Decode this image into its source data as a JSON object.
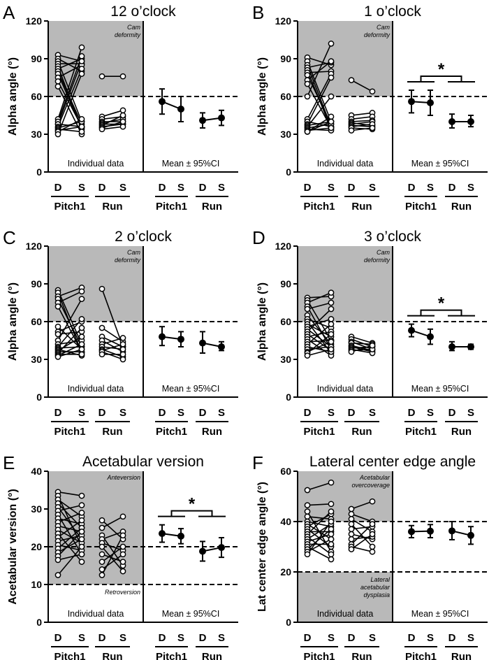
{
  "figure": {
    "individual_label": "Individual data",
    "mean_label": "Mean ± 95%CI",
    "side_labels": [
      "D",
      "S"
    ],
    "group_labels": [
      "Pitch1",
      "Run"
    ],
    "significance_marker": "*"
  },
  "chart_data": [
    {
      "panel": "A",
      "title": "12 o’clock",
      "type": "line",
      "ylabel": "Alpha angle (°)",
      "ylim": [
        0,
        120
      ],
      "yticks": [
        "0",
        "30",
        "60",
        "90",
        "120"
      ],
      "shade": [
        60,
        120
      ],
      "dashed": [
        60
      ],
      "annotations": [
        {
          "text": [
            "Cam",
            "deformity"
          ],
          "pos": "top-right"
        }
      ],
      "significant": false,
      "individual": {
        "pitch1": [
          [
            93,
            88
          ],
          [
            90,
            80
          ],
          [
            88,
            40
          ],
          [
            86,
            86
          ],
          [
            84,
            34
          ],
          [
            82,
            90
          ],
          [
            80,
            38
          ],
          [
            78,
            35
          ],
          [
            75,
            85
          ],
          [
            72,
            36
          ],
          [
            68,
            30
          ],
          [
            42,
            99
          ],
          [
            40,
            92
          ],
          [
            38,
            36
          ],
          [
            38,
            88
          ],
          [
            36,
            82
          ],
          [
            35,
            40
          ],
          [
            34,
            32
          ],
          [
            33,
            36
          ],
          [
            32,
            42
          ],
          [
            30,
            78
          ]
        ],
        "run": [
          [
            76,
            76
          ],
          [
            44,
            49
          ],
          [
            42,
            44
          ],
          [
            40,
            40
          ],
          [
            39,
            42
          ],
          [
            38,
            38
          ],
          [
            37,
            45
          ],
          [
            36,
            38
          ],
          [
            35,
            40
          ],
          [
            34,
            36
          ]
        ]
      },
      "mean": {
        "categories": [
          "Pitch1 D",
          "Pitch1 S",
          "Run D",
          "Run S"
        ],
        "values": [
          56,
          50,
          41,
          43
        ],
        "ci": [
          [
            46,
            66
          ],
          [
            40,
            60
          ],
          [
            35,
            47
          ],
          [
            37,
            49
          ]
        ]
      }
    },
    {
      "panel": "B",
      "title": "1 o’clock",
      "type": "line",
      "ylabel": "Alpha angle (°)",
      "ylim": [
        0,
        120
      ],
      "yticks": [
        "0",
        "30",
        "60",
        "90",
        "120"
      ],
      "shade": [
        60,
        120
      ],
      "dashed": [
        60
      ],
      "annotations": [
        {
          "text": [
            "Cam",
            "deformity"
          ],
          "pos": "top-right"
        }
      ],
      "significant": true,
      "individual": {
        "pitch1": [
          [
            91,
            85
          ],
          [
            88,
            40
          ],
          [
            85,
            36
          ],
          [
            83,
            87
          ],
          [
            81,
            34
          ],
          [
            79,
            80
          ],
          [
            77,
            38
          ],
          [
            73,
            88
          ],
          [
            70,
            35
          ],
          [
            60,
            102
          ],
          [
            42,
            78
          ],
          [
            40,
            36
          ],
          [
            38,
            75
          ],
          [
            37,
            40
          ],
          [
            36,
            60
          ],
          [
            35,
            38
          ],
          [
            34,
            33
          ],
          [
            33,
            35
          ],
          [
            32,
            44
          ],
          [
            32,
            40
          ]
        ],
        "run": [
          [
            73,
            64
          ],
          [
            45,
            47
          ],
          [
            42,
            44
          ],
          [
            40,
            41
          ],
          [
            39,
            37
          ],
          [
            38,
            40
          ],
          [
            37,
            36
          ],
          [
            36,
            38
          ],
          [
            35,
            34
          ],
          [
            33,
            35
          ]
        ]
      },
      "mean": {
        "categories": [
          "Pitch1 D",
          "Pitch1 S",
          "Run D",
          "Run S"
        ],
        "values": [
          56,
          55,
          40,
          40
        ],
        "ci": [
          [
            47,
            65
          ],
          [
            45,
            65
          ],
          [
            35,
            46
          ],
          [
            36,
            45
          ]
        ]
      }
    },
    {
      "panel": "C",
      "title": "2 o’clock",
      "type": "line",
      "ylabel": "Alpha angle (°)",
      "ylim": [
        0,
        120
      ],
      "yticks": [
        "0",
        "30",
        "60",
        "90",
        "120"
      ],
      "shade": [
        60,
        120
      ],
      "dashed": [
        60
      ],
      "annotations": [
        {
          "text": [
            "Cam",
            "deformity"
          ],
          "pos": "top-right"
        }
      ],
      "significant": false,
      "individual": {
        "pitch1": [
          [
            85,
            42
          ],
          [
            83,
            35
          ],
          [
            80,
            87
          ],
          [
            78,
            40
          ],
          [
            75,
            84
          ],
          [
            72,
            36
          ],
          [
            56,
            38
          ],
          [
            52,
            60
          ],
          [
            50,
            52
          ],
          [
            45,
            78
          ],
          [
            42,
            45
          ],
          [
            40,
            62
          ],
          [
            39,
            40
          ],
          [
            38,
            33
          ],
          [
            37,
            48
          ],
          [
            36,
            36
          ],
          [
            35,
            55
          ],
          [
            34,
            34
          ],
          [
            33,
            42
          ],
          [
            32,
            38
          ]
        ],
        "run": [
          [
            86,
            40
          ],
          [
            55,
            44
          ],
          [
            48,
            40
          ],
          [
            45,
            36
          ],
          [
            42,
            47
          ],
          [
            40,
            38
          ],
          [
            38,
            32
          ],
          [
            37,
            42
          ],
          [
            36,
            30
          ],
          [
            34,
            34
          ]
        ]
      },
      "mean": {
        "categories": [
          "Pitch1 D",
          "Pitch1 S",
          "Run D",
          "Run S"
        ],
        "values": [
          48,
          46,
          43,
          40
        ],
        "ci": [
          [
            41,
            56
          ],
          [
            40,
            52
          ],
          [
            35,
            52
          ],
          [
            37,
            44
          ]
        ]
      }
    },
    {
      "panel": "D",
      "title": "3 o’clock",
      "type": "line",
      "ylabel": "Alpha angle (°)",
      "ylim": [
        0,
        120
      ],
      "yticks": [
        "0",
        "30",
        "60",
        "90",
        "120"
      ],
      "shade": [
        60,
        120
      ],
      "dashed": [
        60
      ],
      "annotations": [
        {
          "text": [
            "Cam",
            "deformity"
          ],
          "pos": "top-right"
        }
      ],
      "significant": true,
      "individual": {
        "pitch1": [
          [
            79,
            80
          ],
          [
            77,
            45
          ],
          [
            75,
            83
          ],
          [
            72,
            38
          ],
          [
            70,
            75
          ],
          [
            65,
            42
          ],
          [
            62,
            55
          ],
          [
            60,
            35
          ],
          [
            58,
            48
          ],
          [
            56,
            62
          ],
          [
            54,
            40
          ],
          [
            52,
            70
          ],
          [
            50,
            37
          ],
          [
            48,
            52
          ],
          [
            46,
            33
          ],
          [
            44,
            45
          ],
          [
            42,
            58
          ],
          [
            40,
            36
          ],
          [
            38,
            40
          ],
          [
            36,
            44
          ],
          [
            35,
            50
          ],
          [
            33,
            38
          ]
        ],
        "run": [
          [
            48,
            43
          ],
          [
            46,
            40
          ],
          [
            44,
            38
          ],
          [
            43,
            42
          ],
          [
            41,
            37
          ],
          [
            40,
            36
          ],
          [
            39,
            40
          ],
          [
            38,
            35
          ],
          [
            37,
            38
          ],
          [
            36,
            41
          ]
        ]
      },
      "mean": {
        "categories": [
          "Pitch1 D",
          "Pitch1 S",
          "Run D",
          "Run S"
        ],
        "values": [
          53,
          48,
          40,
          40
        ],
        "ci": [
          [
            48,
            58
          ],
          [
            42,
            54
          ],
          [
            37,
            44
          ],
          [
            38,
            42
          ]
        ]
      }
    },
    {
      "panel": "E",
      "title": "Acetabular version",
      "type": "line",
      "ylabel": "Acetabular version (°)",
      "ylim": [
        0,
        40
      ],
      "yticks": [
        "0",
        "10",
        "20",
        "30",
        "40"
      ],
      "shade": [
        10,
        40
      ],
      "dashed": [
        10,
        20
      ],
      "annotations": [
        {
          "text": [
            "Anteversion"
          ],
          "pos": "top-right"
        },
        {
          "text": [
            "Retroversion"
          ],
          "pos": "below-lower-line"
        }
      ],
      "significant": true,
      "individual": {
        "pitch1": [
          [
            34.5,
            33.5
          ],
          [
            33.5,
            20
          ],
          [
            32.5,
            28
          ],
          [
            31.5,
            25
          ],
          [
            30.5,
            22
          ],
          [
            29.5,
            31
          ],
          [
            28.5,
            18
          ],
          [
            27.5,
            26
          ],
          [
            26.5,
            29
          ],
          [
            25.5,
            24
          ],
          [
            24.5,
            21
          ],
          [
            23.5,
            16
          ],
          [
            22.5,
            27
          ],
          [
            21.5,
            23
          ],
          [
            20.5,
            19
          ],
          [
            19.5,
            25
          ],
          [
            18.5,
            22
          ],
          [
            17.5,
            24
          ],
          [
            16.5,
            18
          ],
          [
            12.5,
            20
          ]
        ],
        "run": [
          [
            27,
            22
          ],
          [
            25,
            28
          ],
          [
            23,
            15
          ],
          [
            22,
            24
          ],
          [
            21,
            19
          ],
          [
            20,
            13.5
          ],
          [
            18,
            16
          ],
          [
            16,
            20
          ],
          [
            14,
            18
          ],
          [
            12.5,
            23
          ]
        ]
      },
      "mean": {
        "categories": [
          "Pitch1 D",
          "Pitch1 S",
          "Run D",
          "Run S"
        ],
        "values": [
          23.5,
          22.8,
          18.8,
          19.8
        ],
        "ci": [
          [
            21.2,
            25.8
          ],
          [
            20.8,
            24.8
          ],
          [
            16.2,
            21.4
          ],
          [
            17.2,
            22.4
          ]
        ]
      }
    },
    {
      "panel": "F",
      "title": "Lateral center edge angle",
      "type": "line",
      "ylabel": "Lat center edge angle (°)",
      "ylim": [
        0,
        60
      ],
      "yticks": [
        "0",
        "20",
        "40",
        "60"
      ],
      "shade": [
        0,
        60
      ],
      "white_band": [
        20,
        40
      ],
      "dashed": [
        20,
        40
      ],
      "annotations": [
        {
          "text": [
            "Acetabular",
            "overcoverage"
          ],
          "pos": "top-right"
        },
        {
          "text": [
            "Lateral",
            "acetabular",
            "dysplasia"
          ],
          "pos": "below-lower-line"
        }
      ],
      "significant": false,
      "individual": {
        "pitch1": [
          [
            52.5,
            55.5
          ],
          [
            46.5,
            47
          ],
          [
            44,
            28
          ],
          [
            42,
            41
          ],
          [
            40,
            38
          ],
          [
            39,
            33
          ],
          [
            38,
            43
          ],
          [
            37,
            30
          ],
          [
            36,
            36
          ],
          [
            35,
            44
          ],
          [
            34,
            27
          ],
          [
            33,
            39
          ],
          [
            32,
            35
          ],
          [
            31,
            31
          ],
          [
            30,
            25
          ],
          [
            29,
            37
          ],
          [
            28,
            33
          ],
          [
            27,
            40
          ]
        ],
        "run": [
          [
            45,
            48
          ],
          [
            43,
            40
          ],
          [
            41,
            36
          ],
          [
            39,
            30
          ],
          [
            37,
            38
          ],
          [
            35,
            33
          ],
          [
            33,
            34
          ],
          [
            31,
            39
          ],
          [
            30,
            28
          ],
          [
            29,
            35
          ]
        ]
      },
      "mean": {
        "categories": [
          "Pitch1 D",
          "Pitch1 S",
          "Run D",
          "Run S"
        ],
        "values": [
          36,
          36.2,
          36.3,
          34.5
        ],
        "ci": [
          [
            33.6,
            38.4
          ],
          [
            33.6,
            38.8
          ],
          [
            32.8,
            40
          ],
          [
            31,
            38
          ]
        ]
      }
    }
  ]
}
